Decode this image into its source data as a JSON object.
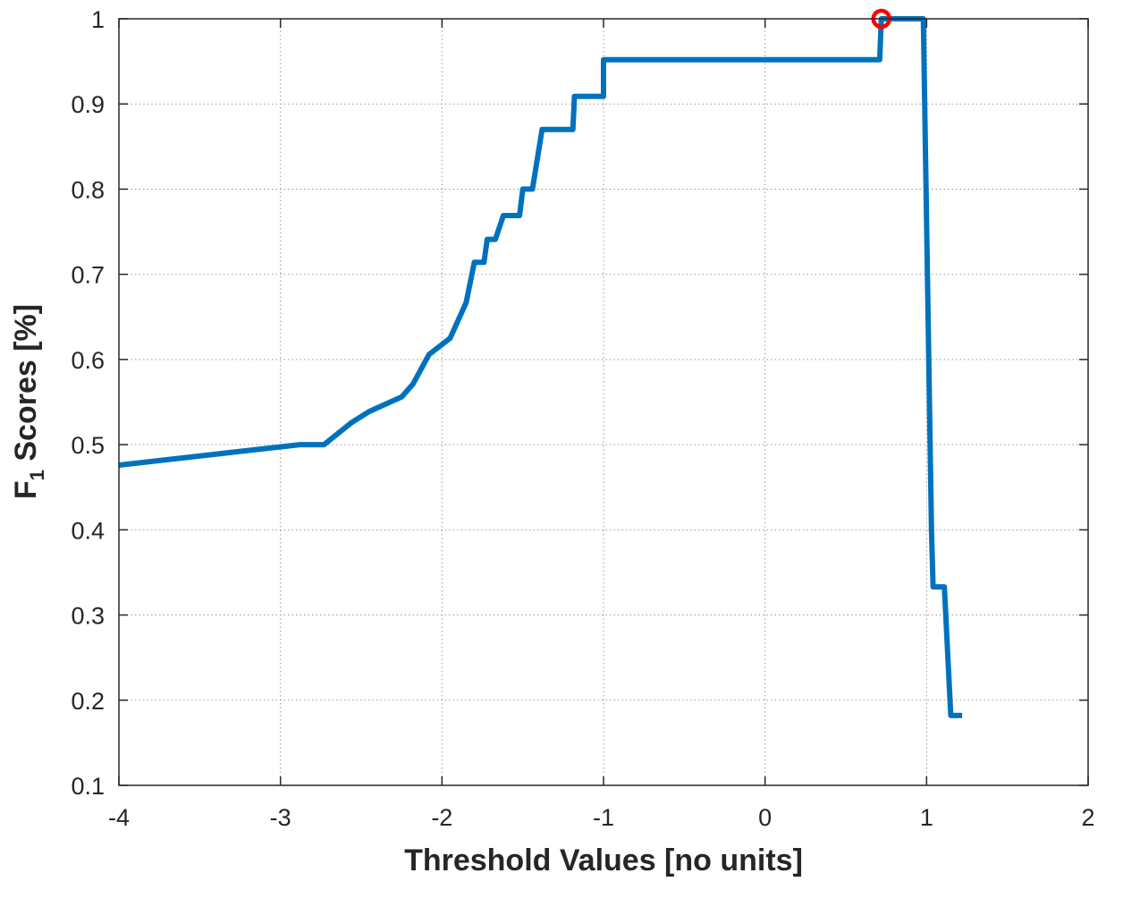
{
  "chart_data": {
    "type": "line",
    "title": "",
    "xlabel": "Threshold Values [no units]",
    "ylabel_main": "F",
    "ylabel_subscript": "1",
    "ylabel_rest": " Scores [%]",
    "xlim": [
      -4,
      2
    ],
    "ylim": [
      0.1,
      1
    ],
    "xticks": [
      -4,
      -3,
      -2,
      -1,
      0,
      1,
      2
    ],
    "xtick_labels": [
      "-4",
      "-3",
      "-2",
      "-1",
      "0",
      "1",
      "2"
    ],
    "yticks": [
      0.1,
      0.2,
      0.3,
      0.4,
      0.5,
      0.6,
      0.7,
      0.8,
      0.9,
      1
    ],
    "ytick_labels": [
      "0.1",
      "0.2",
      "0.3",
      "0.4",
      "0.5",
      "0.6",
      "0.7",
      "0.8",
      "0.9",
      "1"
    ],
    "grid": true,
    "series": [
      {
        "color": "#0072BD",
        "x": [
          -4.0,
          -2.88,
          -2.73,
          -2.56,
          -2.45,
          -2.25,
          -2.18,
          -2.08,
          -1.95,
          -1.85,
          -1.8,
          -1.74,
          -1.72,
          -1.67,
          -1.62,
          -1.6,
          -1.52,
          -1.5,
          -1.44,
          -1.38,
          -1.37,
          -1.19,
          -1.18,
          -1.0,
          -1.0,
          0.71,
          0.72,
          0.98,
          1.03,
          1.04,
          1.11,
          1.15,
          1.22
        ],
        "y": [
          0.476,
          0.5,
          0.5,
          0.526,
          0.539,
          0.556,
          0.571,
          0.606,
          0.625,
          0.667,
          0.714,
          0.714,
          0.741,
          0.741,
          0.769,
          0.769,
          0.769,
          0.8,
          0.8,
          0.87,
          0.87,
          0.87,
          0.909,
          0.909,
          0.952,
          0.952,
          1.0,
          1.0,
          0.4,
          0.333,
          0.333,
          0.182,
          0.182
        ]
      }
    ],
    "marker": {
      "x": 0.72,
      "y": 1.0,
      "color": "#FF0000",
      "shape": "circle"
    }
  }
}
